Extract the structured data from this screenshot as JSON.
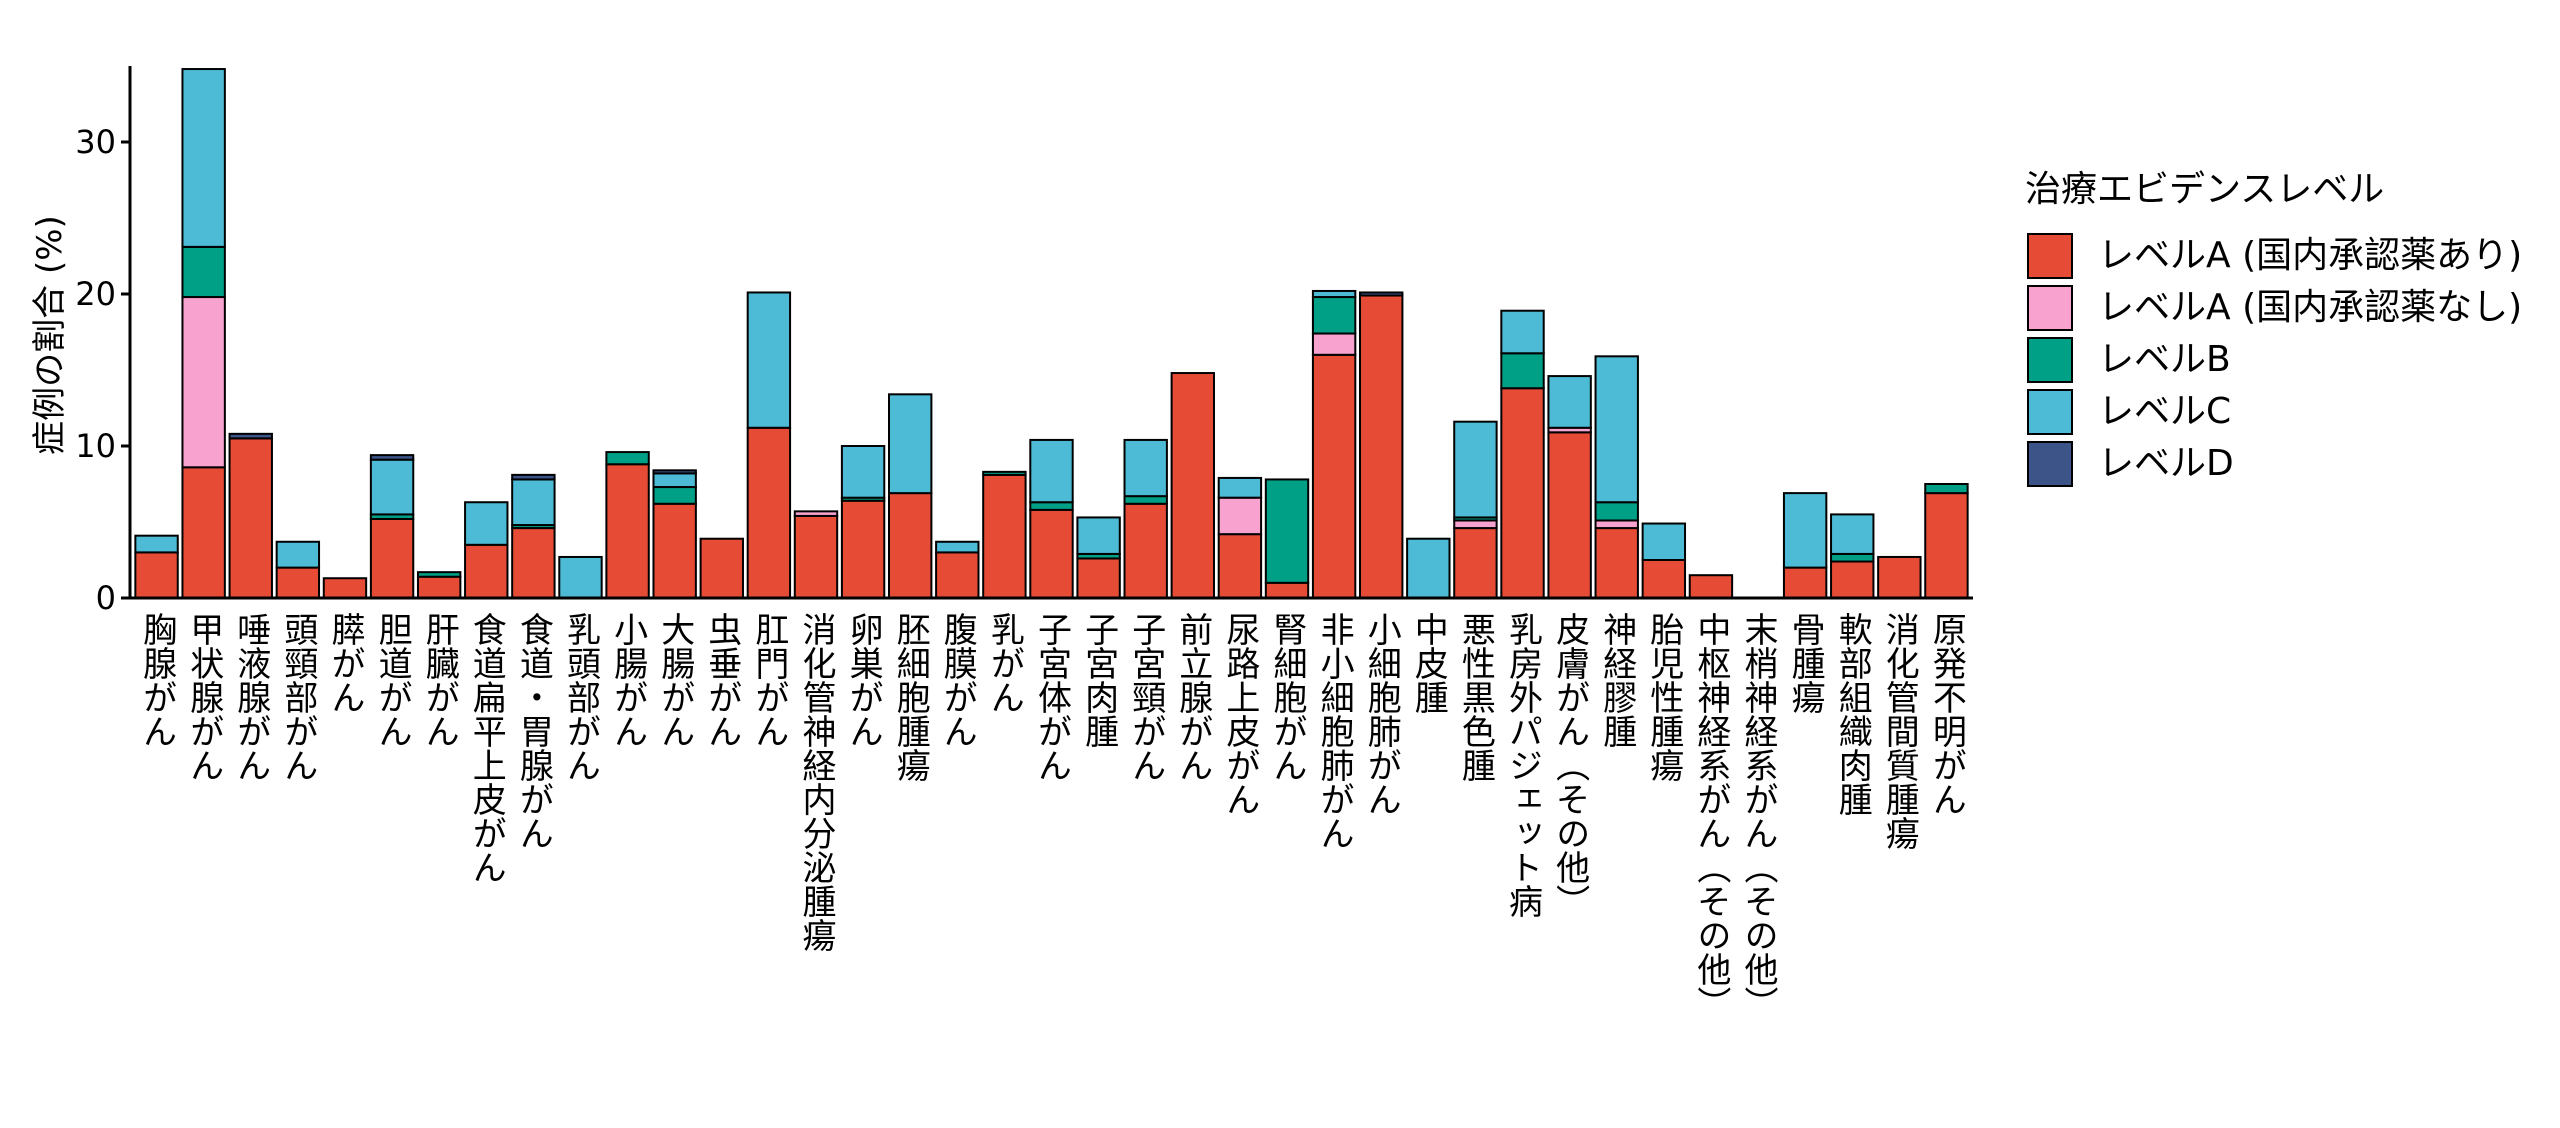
{
  "chart_data": {
    "type": "bar",
    "stacked": true,
    "ylabel": "症例の割合 (%)",
    "ylim": [
      0,
      35
    ],
    "yticks": [
      0,
      10,
      20,
      30
    ],
    "grid": false,
    "categories": [
      "胸腺がん",
      "甲状腺がん",
      "唾液腺がん",
      "頭頸部がん",
      "膵がん",
      "胆道がん",
      "肝臓がん",
      "食道扁平上皮がん",
      "食道・胃腺がん",
      "乳頭部がん",
      "小腸がん",
      "大腸がん",
      "虫垂がん",
      "肛門がん",
      "消化管神経内分泌腫瘍",
      "卵巣がん",
      "胚細胞腫瘍",
      "腹膜がん",
      "乳がん",
      "子宮体がん",
      "子宮肉腫",
      "子宮頸がん",
      "前立腺がん",
      "尿路上皮がん",
      "腎細胞がん",
      "非小細胞肺がん",
      "小細胞肺がん",
      "中皮腫",
      "悪性黒色腫",
      "乳房外パジェット病",
      "皮膚がん（その他）",
      "神経膠腫",
      "胎児性腫瘍",
      "中枢神経系がん（その他）",
      "末梢神経系がん（その他）",
      "骨腫瘍",
      "軟部組織肉腫",
      "消化管間質腫瘍",
      "原発不明がん"
    ],
    "series": [
      {
        "name": "レベルA (国内承認薬あり)",
        "color": "#E64B35",
        "values": [
          3.0,
          8.6,
          10.5,
          2.0,
          1.3,
          5.2,
          1.4,
          3.5,
          4.6,
          0,
          8.8,
          6.2,
          3.9,
          11.2,
          5.4,
          6.4,
          6.9,
          3.0,
          8.1,
          5.8,
          2.6,
          6.2,
          14.8,
          4.2,
          1.0,
          16.0,
          19.9,
          0,
          4.6,
          13.8,
          10.9,
          4.6,
          2.5,
          1.5,
          0,
          2.0,
          2.4,
          2.7,
          6.9
        ]
      },
      {
        "name": "レベルA (国内承認薬なし)",
        "color": "#F8A2CF",
        "values": [
          0,
          11.2,
          0,
          0,
          0,
          0,
          0,
          0,
          0,
          0,
          0,
          0,
          0,
          0,
          0.3,
          0,
          0,
          0,
          0,
          0,
          0,
          0,
          0,
          2.4,
          0,
          1.4,
          0,
          0,
          0.5,
          0,
          0.3,
          0.5,
          0,
          0,
          0,
          0,
          0,
          0,
          0
        ]
      },
      {
        "name": "レベルB",
        "color": "#00A087",
        "values": [
          0,
          3.3,
          0,
          0,
          0,
          0.3,
          0.3,
          0,
          0.2,
          0,
          0.8,
          1.1,
          0,
          0,
          0,
          0.2,
          0,
          0,
          0.2,
          0.5,
          0.3,
          0.5,
          0,
          0,
          6.8,
          2.4,
          0,
          0,
          0.2,
          2.3,
          0,
          1.2,
          0,
          0,
          0,
          0,
          0.5,
          0,
          0.6
        ]
      },
      {
        "name": "レベルC",
        "color": "#4DBBD5",
        "values": [
          1.1,
          11.7,
          0,
          1.7,
          0,
          3.6,
          0,
          2.8,
          3.0,
          2.7,
          0,
          0.9,
          0,
          8.9,
          0,
          3.4,
          6.5,
          0.7,
          0,
          4.1,
          2.4,
          3.7,
          0,
          1.3,
          0,
          0.4,
          0,
          3.9,
          6.3,
          2.8,
          3.4,
          9.6,
          2.4,
          0,
          0,
          4.9,
          2.6,
          0,
          0
        ]
      },
      {
        "name": "レベルD",
        "color": "#3C5488",
        "values": [
          0,
          0,
          0.3,
          0,
          0,
          0.3,
          0,
          0,
          0.3,
          0,
          0,
          0.2,
          0,
          0,
          0,
          0,
          0,
          0,
          0,
          0,
          0,
          0,
          0,
          0,
          0,
          0,
          0.2,
          0,
          0,
          0,
          0,
          0,
          0,
          0,
          0,
          0,
          0,
          0,
          0
        ]
      }
    ],
    "legend": {
      "title": "治療エビデンスレベル",
      "position": "right"
    }
  }
}
